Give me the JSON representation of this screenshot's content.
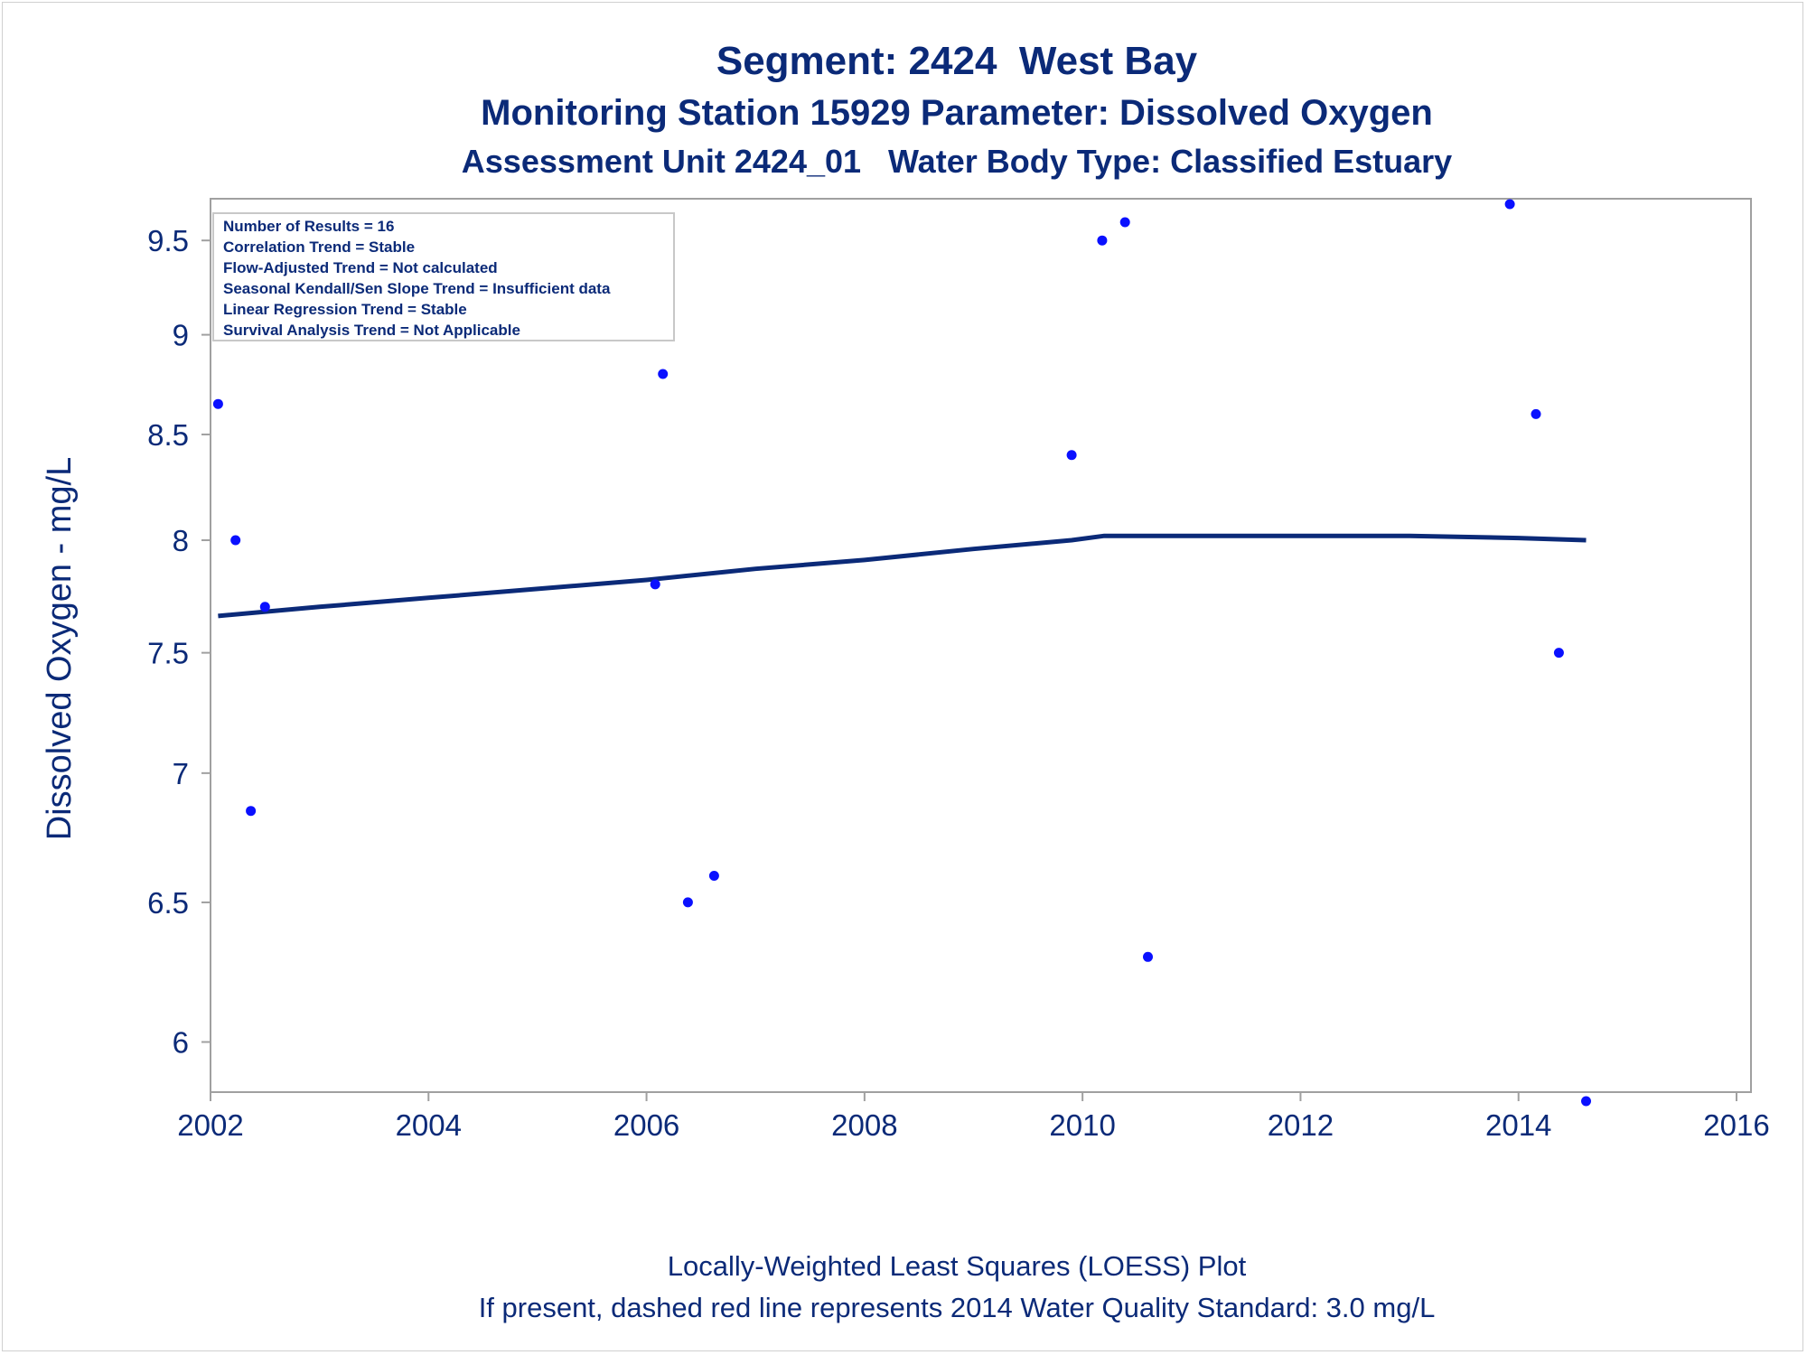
{
  "titles": {
    "line1": "Segment: 2424  West Bay",
    "line2": "Monitoring Station 15929 Parameter: Dissolved Oxygen",
    "line3": "Assessment Unit 2424_01   Water Body Type: Classified Estuary"
  },
  "footnotes": {
    "line1": "Locally-Weighted Least Squares (LOESS) Plot",
    "line2": "If present, dashed red line represents 2014 Water Quality Standard: 3.0 mg/L"
  },
  "stats_box": [
    "Number of Results = 16",
    "Correlation Trend = Stable",
    "Flow-Adjusted Trend = Not calculated",
    "Seasonal Kendall/Sen Slope Trend = Insufficient data",
    "Linear Regression Trend = Stable",
    "Survival Analysis Trend = Not Applicable"
  ],
  "colors": {
    "text": "#0b2a78",
    "points": "#0a10ff",
    "loess": "#0b2a78",
    "frame": "#a0a0a0"
  },
  "chart_data": {
    "type": "scatter",
    "ylabel": "Dissolved Oxygen - mg/L",
    "xlabel": "",
    "xlim": [
      2002,
      2016
    ],
    "ylim": [
      5.83,
      9.73
    ],
    "y_scale": "log",
    "x_ticks": [
      2002,
      2004,
      2006,
      2008,
      2010,
      2012,
      2014,
      2016
    ],
    "y_ticks": [
      6,
      6.5,
      7,
      7.5,
      8,
      8.5,
      9,
      9.5
    ],
    "y_tick_labels": [
      "6",
      "6.5",
      "7",
      "7.5",
      "8",
      "8.5",
      "9",
      "9.5"
    ],
    "grid": false,
    "legend_position": "top-left",
    "points": [
      {
        "x": 2002.07,
        "y": 8.65
      },
      {
        "x": 2002.23,
        "y": 8.0
      },
      {
        "x": 2002.37,
        "y": 6.85
      },
      {
        "x": 2002.5,
        "y": 7.7
      },
      {
        "x": 2006.08,
        "y": 7.8
      },
      {
        "x": 2006.15,
        "y": 8.8
      },
      {
        "x": 2006.38,
        "y": 6.5
      },
      {
        "x": 2006.62,
        "y": 6.6
      },
      {
        "x": 2009.9,
        "y": 8.4
      },
      {
        "x": 2010.18,
        "y": 9.5
      },
      {
        "x": 2010.39,
        "y": 9.6
      },
      {
        "x": 2010.6,
        "y": 6.3
      },
      {
        "x": 2013.92,
        "y": 9.7
      },
      {
        "x": 2014.16,
        "y": 8.6
      },
      {
        "x": 2014.37,
        "y": 7.5
      },
      {
        "x": 2014.62,
        "y": 5.8
      }
    ],
    "loess": [
      {
        "x": 2002.07,
        "y": 7.66
      },
      {
        "x": 2003.0,
        "y": 7.7
      },
      {
        "x": 2004.0,
        "y": 7.74
      },
      {
        "x": 2005.0,
        "y": 7.78
      },
      {
        "x": 2006.0,
        "y": 7.82
      },
      {
        "x": 2007.0,
        "y": 7.87
      },
      {
        "x": 2008.0,
        "y": 7.91
      },
      {
        "x": 2009.0,
        "y": 7.96
      },
      {
        "x": 2009.9,
        "y": 8.0
      },
      {
        "x": 2010.2,
        "y": 8.02
      },
      {
        "x": 2011.0,
        "y": 8.02
      },
      {
        "x": 2012.0,
        "y": 8.02
      },
      {
        "x": 2013.0,
        "y": 8.02
      },
      {
        "x": 2014.0,
        "y": 8.01
      },
      {
        "x": 2014.62,
        "y": 8.0
      }
    ]
  }
}
